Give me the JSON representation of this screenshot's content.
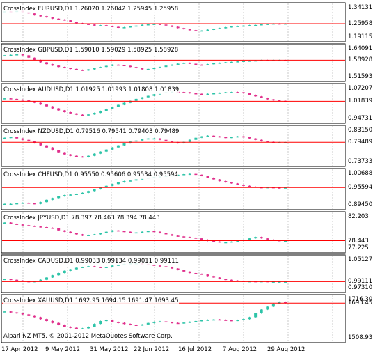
{
  "colors": {
    "bull": "#2ec4a8",
    "bear": "#e0308c",
    "level_line": "#ff0000",
    "grid": "#c8c8c8",
    "border": "#000000",
    "background": "#ffffff"
  },
  "copyright": "Alpari NZ MT5, © 2001-2012 MetaQuotes Software Corp.",
  "x_axis": {
    "labels": [
      "17 Apr 2012",
      "9 May 2012",
      "31 May 2012",
      "22 Jun 2012",
      "16 Jul 2012",
      "7 Aug 2012",
      "29 Aug 2012"
    ]
  },
  "chart_data": [
    {
      "type": "candlestick",
      "title": "CrossIndex EURUSD,D1 1.26020 1.26042 1.25945 1.25958",
      "price_labels": [
        "1.34131",
        "1.25958",
        "1.19115"
      ],
      "ylim": [
        1.19115,
        1.34131
      ],
      "level": 1.25958,
      "values": [
        1.32,
        1.318,
        1.322,
        1.316,
        1.31,
        1.3,
        1.296,
        1.29,
        1.284,
        1.28,
        1.276,
        1.268,
        1.262,
        1.258,
        1.255,
        1.25,
        1.252,
        1.248,
        1.244,
        1.24,
        1.242,
        1.246,
        1.25,
        1.254,
        1.256,
        1.258,
        1.255,
        1.25,
        1.244,
        1.238,
        1.232,
        1.228,
        1.225,
        1.226,
        1.23,
        1.234,
        1.238,
        1.242,
        1.246,
        1.248,
        1.25,
        1.252,
        1.253,
        1.256,
        1.258,
        1.26,
        1.259,
        1.26
      ]
    },
    {
      "type": "candlestick",
      "title": "CrossIndex GBPUSD,D1 1.59010 1.59029 1.58925 1.58928",
      "price_labels": [
        "1.64091",
        "1.58928",
        "1.51593"
      ],
      "ylim": [
        1.51593,
        1.64091
      ],
      "level": 1.58928,
      "values": [
        1.61,
        1.612,
        1.614,
        1.61,
        1.6,
        1.59,
        1.58,
        1.572,
        1.566,
        1.56,
        1.556,
        1.552,
        1.548,
        1.545,
        1.55,
        1.556,
        1.56,
        1.565,
        1.57,
        1.568,
        1.565,
        1.56,
        1.555,
        1.55,
        1.552,
        1.556,
        1.56,
        1.566,
        1.57,
        1.574,
        1.578,
        1.574,
        1.57,
        1.568,
        1.572,
        1.576,
        1.578,
        1.58,
        1.582,
        1.584,
        1.586,
        1.587,
        1.588,
        1.59,
        1.589,
        1.59,
        1.59,
        1.589
      ]
    },
    {
      "type": "candlestick",
      "title": "CrossIndex AUDUSD,D1 1.01925 1.01993 1.01808 1.01839",
      "price_labels": [
        "1.07207",
        "1.01839",
        "0.94731"
      ],
      "ylim": [
        0.94731,
        1.07207
      ],
      "level": 1.01839,
      "values": [
        1.03,
        1.028,
        1.025,
        1.022,
        1.018,
        1.012,
        1.005,
        0.998,
        0.99,
        0.982,
        0.975,
        0.97,
        0.965,
        0.962,
        0.966,
        0.972,
        0.98,
        0.988,
        0.996,
        1.004,
        1.012,
        1.02,
        1.028,
        1.034,
        1.04,
        1.046,
        1.05,
        1.054,
        1.056,
        1.055,
        1.054,
        1.05,
        1.048,
        1.046,
        1.048,
        1.05,
        1.052,
        1.054,
        1.055,
        1.054,
        1.05,
        1.044,
        1.038,
        1.032,
        1.026,
        1.022,
        1.02,
        1.018
      ]
    },
    {
      "type": "candlestick",
      "title": "CrossIndex NZDUSD,D1 0.79516 0.79541 0.79403 0.79489",
      "price_labels": [
        "0.83150",
        "0.79489",
        "0.73733"
      ],
      "ylim": [
        0.73733,
        0.8315
      ],
      "level": 0.79489,
      "values": [
        0.808,
        0.81,
        0.806,
        0.802,
        0.798,
        0.792,
        0.786,
        0.78,
        0.772,
        0.766,
        0.76,
        0.756,
        0.754,
        0.752,
        0.756,
        0.762,
        0.768,
        0.774,
        0.78,
        0.786,
        0.792,
        0.797,
        0.8,
        0.804,
        0.806,
        0.806,
        0.802,
        0.798,
        0.795,
        0.792,
        0.796,
        0.802,
        0.808,
        0.812,
        0.814,
        0.812,
        0.81,
        0.808,
        0.81,
        0.812,
        0.81,
        0.806,
        0.802,
        0.798,
        0.796,
        0.795,
        0.795,
        0.795
      ]
    },
    {
      "type": "candlestick",
      "title": "CrossIndex CHFUSD,D1 0.95550 0.95606 0.95534 0.95594",
      "price_labels": [
        "1.00688",
        "0.95594",
        "0.89450"
      ],
      "ylim": [
        0.8945,
        1.00688
      ],
      "level": 0.95594,
      "values": [
        0.9,
        0.9,
        0.902,
        0.904,
        0.902,
        0.9,
        0.906,
        0.914,
        0.92,
        0.926,
        0.93,
        0.932,
        0.934,
        0.938,
        0.944,
        0.95,
        0.956,
        0.962,
        0.968,
        0.974,
        0.978,
        0.98,
        0.984,
        0.988,
        0.99,
        0.992,
        0.994,
        0.996,
        0.998,
        1.0,
        1.002,
        1.003,
        1.0,
        0.996,
        0.99,
        0.984,
        0.978,
        0.974,
        0.97,
        0.966,
        0.962,
        0.959,
        0.957,
        0.956,
        0.957,
        0.956,
        0.955,
        0.956
      ]
    },
    {
      "type": "candlestick",
      "title": "CrossIndex JPYUSD,D1 78.397 78.463 78.394 78.443",
      "price_labels": [
        "82.203",
        "78.443",
        "77.225"
      ],
      "ylim": [
        77.225,
        82.203
      ],
      "level": 78.443,
      "values": [
        81.2,
        81.0,
        80.9,
        80.8,
        80.7,
        80.6,
        80.5,
        80.4,
        80.3,
        80.0,
        79.8,
        79.6,
        79.4,
        79.2,
        79.3,
        79.4,
        79.6,
        79.8,
        80.0,
        79.9,
        79.8,
        79.7,
        79.7,
        79.8,
        79.9,
        79.8,
        79.6,
        79.4,
        79.2,
        79.1,
        79.0,
        78.9,
        78.8,
        78.6,
        78.4,
        78.3,
        78.2,
        78.2,
        78.3,
        78.4,
        78.6,
        78.8,
        79.0,
        78.8,
        78.6,
        78.5,
        78.44,
        78.44
      ]
    },
    {
      "type": "candlestick",
      "title": "CrossIndex CADUSD,D1 0.99033 0.99134 0.99011 0.99111",
      "price_labels": [
        "1.05127",
        "0.99111",
        "0.97310"
      ],
      "ylim": [
        0.9731,
        1.05127
      ],
      "level": 0.99111,
      "values": [
        0.998,
        0.996,
        0.994,
        0.992,
        0.99,
        0.992,
        0.996,
        1.002,
        1.008,
        1.014,
        1.02,
        1.024,
        1.028,
        1.03,
        1.032,
        1.03,
        1.028,
        1.03,
        1.034,
        1.036,
        1.038,
        1.04,
        1.04,
        1.038,
        1.036,
        1.034,
        1.032,
        1.03,
        1.026,
        1.022,
        1.018,
        1.014,
        1.012,
        1.01,
        1.006,
        1.002,
        0.998,
        0.996,
        0.994,
        0.993,
        0.992,
        0.992,
        0.991,
        0.992,
        0.991,
        0.991,
        0.991,
        0.991
      ]
    },
    {
      "type": "candlestick",
      "title": "CrossIndex XAUUSD,D1 1692.95 1694.15 1691.47 1693.45",
      "price_labels": [
        "1716.30",
        "1693.45",
        "1508.93"
      ],
      "ylim": [
        1508.93,
        1716.3
      ],
      "level": 1693.45,
      "values": [
        1650,
        1645,
        1640,
        1635,
        1630,
        1620,
        1610,
        1600,
        1590,
        1580,
        1570,
        1565,
        1560,
        1562,
        1570,
        1585,
        1600,
        1605,
        1595,
        1590,
        1585,
        1580,
        1578,
        1582,
        1590,
        1595,
        1598,
        1594,
        1590,
        1588,
        1592,
        1596,
        1600,
        1604,
        1606,
        1608,
        1606,
        1604,
        1602,
        1605,
        1610,
        1620,
        1640,
        1660,
        1675,
        1690,
        1700,
        1693
      ]
    }
  ]
}
